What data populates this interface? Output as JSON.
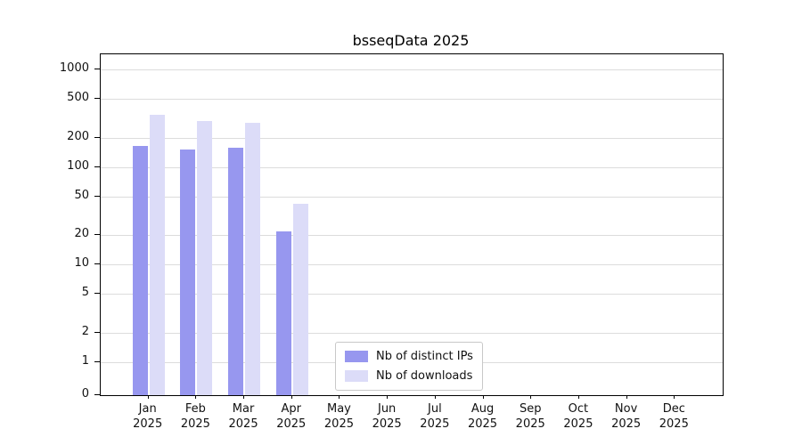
{
  "chart_data": {
    "type": "bar",
    "title": "bsseqData 2025",
    "year": "2025",
    "months": [
      "Jan",
      "Feb",
      "Mar",
      "Apr",
      "May",
      "Jun",
      "Jul",
      "Aug",
      "Sep",
      "Oct",
      "Nov",
      "Dec"
    ],
    "series": [
      {
        "name": "Nb of distinct IPs",
        "color": "#9797ef",
        "values": [
          165,
          150,
          158,
          22,
          0,
          0,
          0,
          0,
          0,
          0,
          0,
          0
        ]
      },
      {
        "name": "Nb of downloads",
        "color": "#dcdcf8",
        "values": [
          340,
          295,
          285,
          42,
          0,
          0,
          0,
          0,
          0,
          0,
          0,
          0
        ]
      }
    ],
    "yscale": "log",
    "yticks": [
      0,
      1,
      2,
      5,
      10,
      20,
      50,
      100,
      200,
      500,
      1000
    ],
    "ylim": [
      0,
      1000
    ],
    "grid": true,
    "legend_position": "lower-center"
  }
}
